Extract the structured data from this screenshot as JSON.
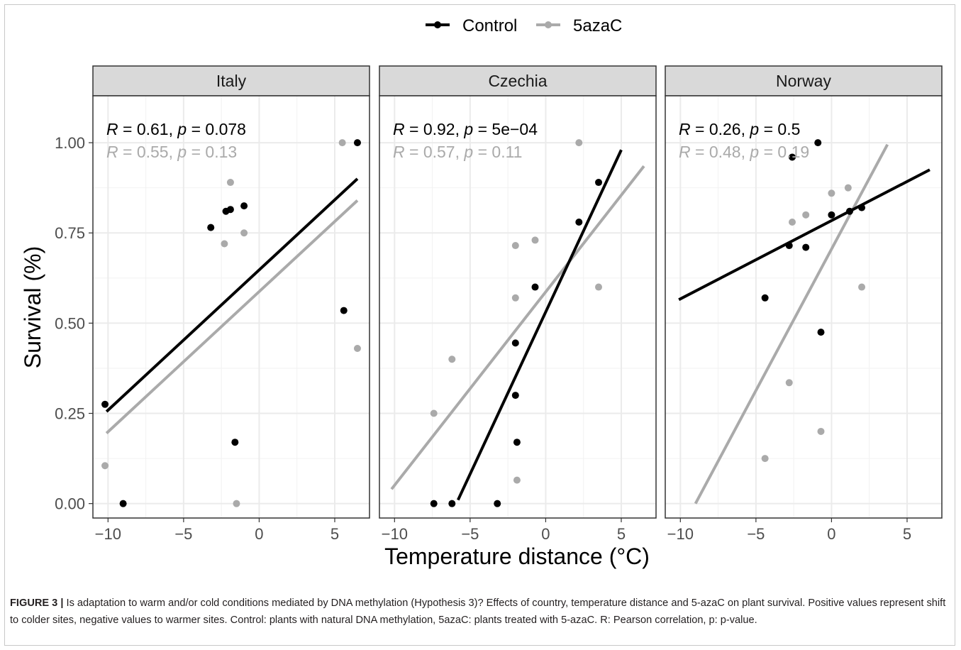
{
  "caption": {
    "label": "FIGURE 3 |",
    "text": "Is adaptation to warm and/or cold conditions mediated by DNA methylation (Hypothesis 3)? Effects of country, temperature distance and 5-azaC on plant survival. Positive values represent shift to colder sites, negative values to warmer sites. Control: plants with natural DNA methylation, 5azaC: plants treated with 5-azaC. R: Pearson correlation, p: p-value."
  },
  "chart_data": {
    "type": "scatter",
    "xlabel": "Temperature distance (°C)",
    "ylabel": "Survival (%)",
    "xlim": [
      -11,
      7.3
    ],
    "ylim": [
      -0.04,
      1.13
    ],
    "x_ticks": [
      -10,
      -5,
      0,
      5
    ],
    "x_tick_labels": [
      "−10",
      "−5",
      "0",
      "5"
    ],
    "y_ticks": [
      0,
      0.25,
      0.5,
      0.75,
      1.0
    ],
    "y_tick_labels": [
      "0.00",
      "0.25",
      "0.50",
      "0.75",
      "1.00"
    ],
    "grid": true,
    "legend_position": "top",
    "legend": [
      {
        "name": "Control",
        "color": "#000000"
      },
      {
        "name": "5azaC",
        "color": "#aaaaaa"
      }
    ],
    "panels": [
      {
        "title": "Italy",
        "series": [
          {
            "name": "Control",
            "color": "#000000",
            "points": [
              [
                -10.2,
                0.275
              ],
              [
                -9.0,
                0.0
              ],
              [
                -3.2,
                0.765
              ],
              [
                -2.2,
                0.81
              ],
              [
                -1.9,
                0.815
              ],
              [
                -1.6,
                0.17
              ],
              [
                -1.0,
                0.825
              ],
              [
                5.6,
                0.535
              ],
              [
                6.5,
                1.0
              ]
            ],
            "fit": [
              [
                -10.1,
                0.255
              ],
              [
                6.5,
                0.9
              ]
            ],
            "stats": {
              "R_label": "R",
              "r_text": " = 0.61, ",
              "p_label": "p",
              "p_text": " = 0.078"
            }
          },
          {
            "name": "5azaC",
            "color": "#aaaaaa",
            "points": [
              [
                -10.2,
                0.105
              ],
              [
                -3.2,
                0.765
              ],
              [
                -2.3,
                0.72
              ],
              [
                -1.9,
                0.89
              ],
              [
                -1.5,
                0.0
              ],
              [
                -1.0,
                0.75
              ],
              [
                5.5,
                1.0
              ],
              [
                6.5,
                0.43
              ]
            ],
            "fit": [
              [
                -10.1,
                0.195
              ],
              [
                6.5,
                0.84
              ]
            ],
            "stats": {
              "R_label": "R",
              "r_text": " = 0.55, ",
              "p_label": "p",
              "p_text": " = 0.13"
            }
          }
        ]
      },
      {
        "title": "Czechia",
        "series": [
          {
            "name": "Control",
            "color": "#000000",
            "points": [
              [
                -7.4,
                0.0
              ],
              [
                -6.2,
                0.0
              ],
              [
                -3.2,
                0.0
              ],
              [
                -2.0,
                0.3
              ],
              [
                -2.0,
                0.445
              ],
              [
                -1.9,
                0.17
              ],
              [
                -0.7,
                0.6
              ],
              [
                2.2,
                0.78
              ],
              [
                3.5,
                0.89
              ]
            ],
            "fit": [
              [
                -5.8,
                0.01
              ],
              [
                5.0,
                0.98
              ]
            ],
            "stats": {
              "R_label": "R",
              "r_text": " = 0.92, ",
              "p_label": "p",
              "p_text": " = 5e−04"
            }
          },
          {
            "name": "5azaC",
            "color": "#aaaaaa",
            "points": [
              [
                -7.4,
                0.25
              ],
              [
                -6.2,
                0.4
              ],
              [
                -2.0,
                0.715
              ],
              [
                -2.0,
                0.57
              ],
              [
                -1.9,
                0.065
              ],
              [
                -0.7,
                0.73
              ],
              [
                2.2,
                1.0
              ],
              [
                3.5,
                0.6
              ]
            ],
            "fit": [
              [
                -10.2,
                0.04
              ],
              [
                6.5,
                0.935
              ]
            ],
            "stats": {
              "R_label": "R",
              "r_text": " = 0.57, ",
              "p_label": "p",
              "p_text": " = 0.11"
            }
          }
        ]
      },
      {
        "title": "Norway",
        "series": [
          {
            "name": "Control",
            "color": "#000000",
            "points": [
              [
                -4.4,
                0.57
              ],
              [
                -2.8,
                0.715
              ],
              [
                -2.6,
                0.96
              ],
              [
                -1.7,
                0.71
              ],
              [
                -0.9,
                1.0
              ],
              [
                -0.7,
                0.475
              ],
              [
                0.0,
                0.8
              ],
              [
                1.2,
                0.81
              ],
              [
                2.0,
                0.82
              ]
            ],
            "fit": [
              [
                -10.1,
                0.565
              ],
              [
                6.5,
                0.925
              ]
            ],
            "stats": {
              "R_label": "R",
              "r_text": " = 0.26, ",
              "p_label": "p",
              "p_text": " = 0.5"
            }
          },
          {
            "name": "5azaC",
            "color": "#aaaaaa",
            "points": [
              [
                -4.4,
                0.125
              ],
              [
                -2.8,
                0.335
              ],
              [
                -2.6,
                0.78
              ],
              [
                -1.7,
                0.8
              ],
              [
                -0.7,
                0.2
              ],
              [
                0.0,
                0.86
              ],
              [
                1.1,
                0.875
              ],
              [
                2.0,
                0.6
              ]
            ],
            "fit": [
              [
                -9.0,
                0.0
              ],
              [
                3.7,
                0.995
              ]
            ],
            "stats": {
              "R_label": "R",
              "r_text": " = 0.48, ",
              "p_label": "p",
              "p_text": " = 0.19"
            }
          }
        ]
      }
    ]
  }
}
